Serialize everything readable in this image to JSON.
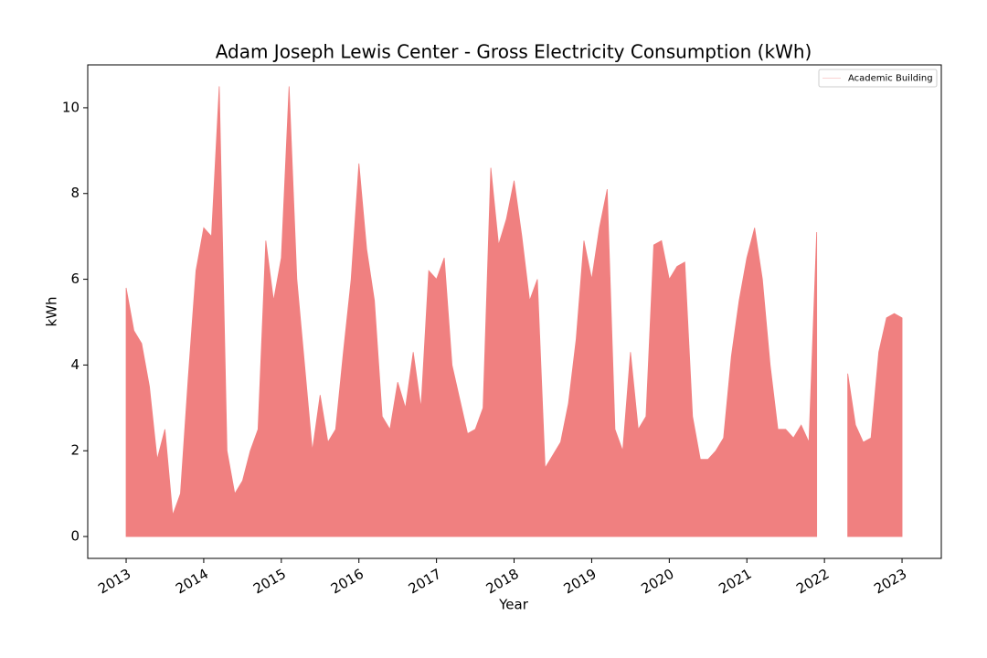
{
  "chart_data": {
    "type": "area",
    "title": "Adam Joseph Lewis Center - Gross Electricity Consumption (kWh)",
    "x_label": "Year",
    "y_label": "kWh",
    "legend": "upper right",
    "x": [
      2013.0,
      2013.1,
      2013.2,
      2013.3,
      2013.4,
      2013.5,
      2013.6,
      2013.7,
      2013.8,
      2013.9,
      2014.0,
      2014.1,
      2014.2,
      2014.3,
      2014.4,
      2014.5,
      2014.6,
      2014.7,
      2014.8,
      2014.9,
      2015.0,
      2015.1,
      2015.2,
      2015.3,
      2015.4,
      2015.5,
      2015.6,
      2015.7,
      2015.8,
      2015.9,
      2016.0,
      2016.1,
      2016.2,
      2016.3,
      2016.4,
      2016.5,
      2016.6,
      2016.7,
      2016.8,
      2016.9,
      2017.0,
      2017.1,
      2017.2,
      2017.3,
      2017.4,
      2017.5,
      2017.6,
      2017.7,
      2017.8,
      2017.9,
      2018.0,
      2018.1,
      2018.2,
      2018.3,
      2018.4,
      2018.5,
      2018.6,
      2018.7,
      2018.8,
      2018.9,
      2019.0,
      2019.1,
      2019.2,
      2019.3,
      2019.4,
      2019.5,
      2019.6,
      2019.7,
      2019.8,
      2019.9,
      2020.0,
      2020.1,
      2020.2,
      2020.3,
      2020.4,
      2020.5,
      2020.6,
      2020.7,
      2020.8,
      2020.9,
      2021.0,
      2021.1,
      2021.2,
      2021.3,
      2021.4,
      2021.5,
      2021.6,
      2021.7,
      2021.8,
      2021.9,
      2022.0,
      2022.1,
      2022.2,
      2022.3,
      2022.4,
      2022.5,
      2022.6,
      2022.7,
      2022.8,
      2022.9,
      2023.0
    ],
    "series": [
      {
        "name": "Academic Building",
        "color": "#f08080",
        "values": [
          5.8,
          4.8,
          4.5,
          3.5,
          1.8,
          2.5,
          0.5,
          1.0,
          3.7,
          6.2,
          7.2,
          7.0,
          10.5,
          2.0,
          1.0,
          1.3,
          2.0,
          2.5,
          6.9,
          5.5,
          6.5,
          10.5,
          6.0,
          4.0,
          2.0,
          3.3,
          2.2,
          2.5,
          4.3,
          6.0,
          8.7,
          6.7,
          5.5,
          2.8,
          2.5,
          3.6,
          3.0,
          4.3,
          3.0,
          6.2,
          6.0,
          6.5,
          4.0,
          3.2,
          2.4,
          2.5,
          3.0,
          8.6,
          6.8,
          7.4,
          8.3,
          7.0,
          5.5,
          6.0,
          1.6,
          1.9,
          2.2,
          3.1,
          4.6,
          6.9,
          6.0,
          7.2,
          8.1,
          2.5,
          2.0,
          4.3,
          2.5,
          2.8,
          6.8,
          6.9,
          6.0,
          6.3,
          6.4,
          2.8,
          1.8,
          1.8,
          2.0,
          2.3,
          4.2,
          5.5,
          6.5,
          7.2,
          6.0,
          4.0,
          2.5,
          2.5,
          2.3,
          2.6,
          2.2,
          7.1,
          null,
          null,
          null,
          3.8,
          2.6,
          2.2,
          2.3,
          4.3,
          5.1,
          5.2,
          5.1
        ]
      }
    ],
    "xlim": [
      2012.505,
      2023.506
    ],
    "xticks": [
      2013,
      2014,
      2015,
      2016,
      2017,
      2018,
      2019,
      2020,
      2021,
      2022,
      2023
    ],
    "ylim": [
      -0.51,
      11.0
    ],
    "yticks": [
      0,
      2,
      4,
      6,
      8,
      10
    ]
  }
}
